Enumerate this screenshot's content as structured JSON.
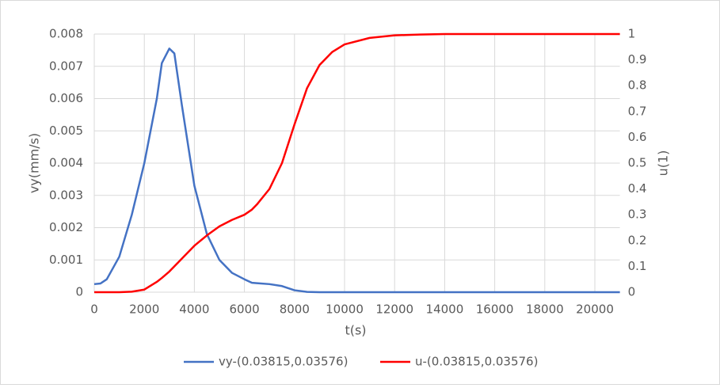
{
  "chart_data": {
    "type": "line",
    "x": [
      0,
      250,
      500,
      1000,
      1500,
      2000,
      2500,
      2700,
      3000,
      3200,
      3500,
      4000,
      4500,
      5000,
      5500,
      6000,
      6300,
      6500,
      7000,
      7500,
      8000,
      8500,
      9000,
      9500,
      10000,
      11000,
      12000,
      13000,
      14000,
      21000
    ],
    "series": [
      {
        "name": "vy-(0.03815,0.03576)",
        "color": "#4472c4",
        "axis": "y",
        "values": [
          0.00025,
          0.00027,
          0.0004,
          0.0011,
          0.0024,
          0.004,
          0.006,
          0.0071,
          0.00755,
          0.0074,
          0.0058,
          0.0033,
          0.0018,
          0.001,
          0.0006,
          0.0004,
          0.00029,
          0.00028,
          0.00025,
          0.00019,
          6e-05,
          1e-05,
          0,
          0,
          0,
          0,
          0,
          0,
          0,
          0
        ]
      },
      {
        "name": "u-(0.03815,0.03576)",
        "color": "#ff0000",
        "axis": "y2",
        "values": [
          0,
          0,
          0,
          0,
          0.002,
          0.01,
          0.04,
          0.055,
          0.08,
          0.1,
          0.13,
          0.18,
          0.22,
          0.255,
          0.28,
          0.3,
          0.32,
          0.34,
          0.4,
          0.5,
          0.65,
          0.79,
          0.88,
          0.93,
          0.96,
          0.985,
          0.995,
          0.998,
          1,
          1
        ]
      }
    ],
    "x_label": "t(s)",
    "y_label": "vy(mm/s)",
    "y2_label": "u(1)",
    "xlim": [
      0,
      21000
    ],
    "xticks": [
      0,
      2000,
      4000,
      6000,
      8000,
      10000,
      12000,
      14000,
      16000,
      18000,
      20000
    ],
    "ylim": [
      0,
      0.008
    ],
    "yticks": [
      0,
      0.001,
      0.002,
      0.003,
      0.004,
      0.005,
      0.006,
      0.007,
      0.008
    ],
    "y2lim": [
      0,
      1
    ],
    "y2ticks": [
      0,
      0.1,
      0.2,
      0.3,
      0.4,
      0.5,
      0.6,
      0.7,
      0.8,
      0.9,
      1
    ],
    "grid": true,
    "legend": "bottom"
  }
}
